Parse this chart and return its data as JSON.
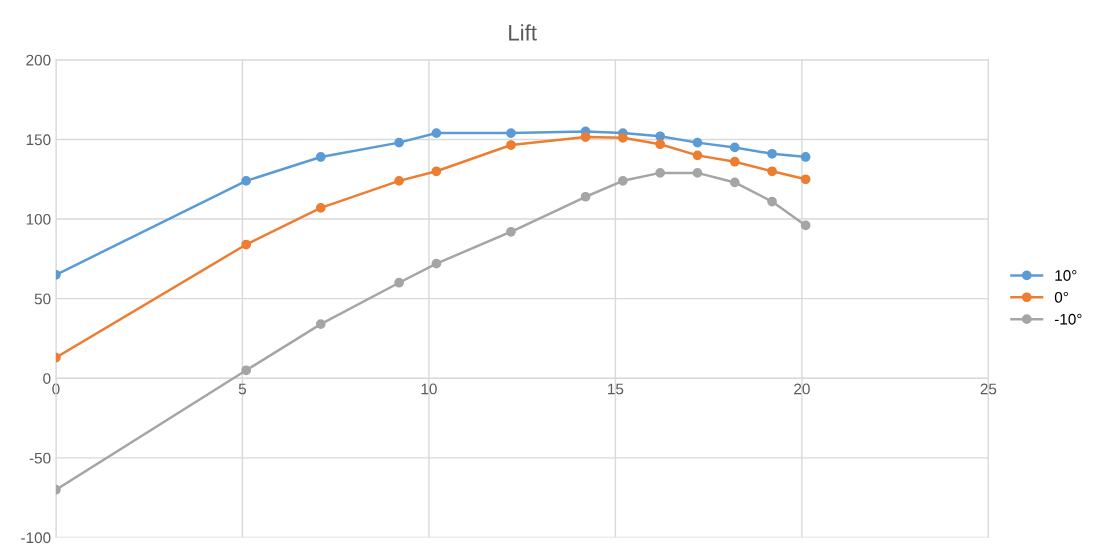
{
  "chart_data": {
    "type": "line",
    "title": "Lift",
    "x": [
      0,
      5.1,
      7.1,
      9.2,
      10.2,
      12.2,
      14.2,
      15.2,
      16.2,
      17.2,
      18.2,
      19.2,
      20.1
    ],
    "series": [
      {
        "name": "10°",
        "color": "#5b9bd5",
        "values": [
          65,
          124,
          139,
          148,
          154,
          154,
          155,
          154,
          152,
          148,
          145,
          141,
          139
        ]
      },
      {
        "name": "0°",
        "color": "#ed7d31",
        "values": [
          13,
          84,
          107,
          124,
          130,
          146.5,
          151.5,
          151,
          147,
          140,
          136,
          130,
          125
        ]
      },
      {
        "name": "-10°",
        "color": "#a5a5a5",
        "values": [
          -70,
          5,
          34,
          60,
          72,
          92,
          114,
          124,
          129,
          129,
          123,
          111,
          96
        ]
      }
    ],
    "xlim": [
      0,
      25
    ],
    "xticks": [
      0,
      5,
      10,
      15,
      20,
      25
    ],
    "ylim": [
      -100,
      200
    ],
    "yticks": [
      -100,
      -50,
      0,
      50,
      100,
      150,
      200
    ],
    "grid": true,
    "legend": "right",
    "marker": "circle",
    "line_style": "solid"
  }
}
